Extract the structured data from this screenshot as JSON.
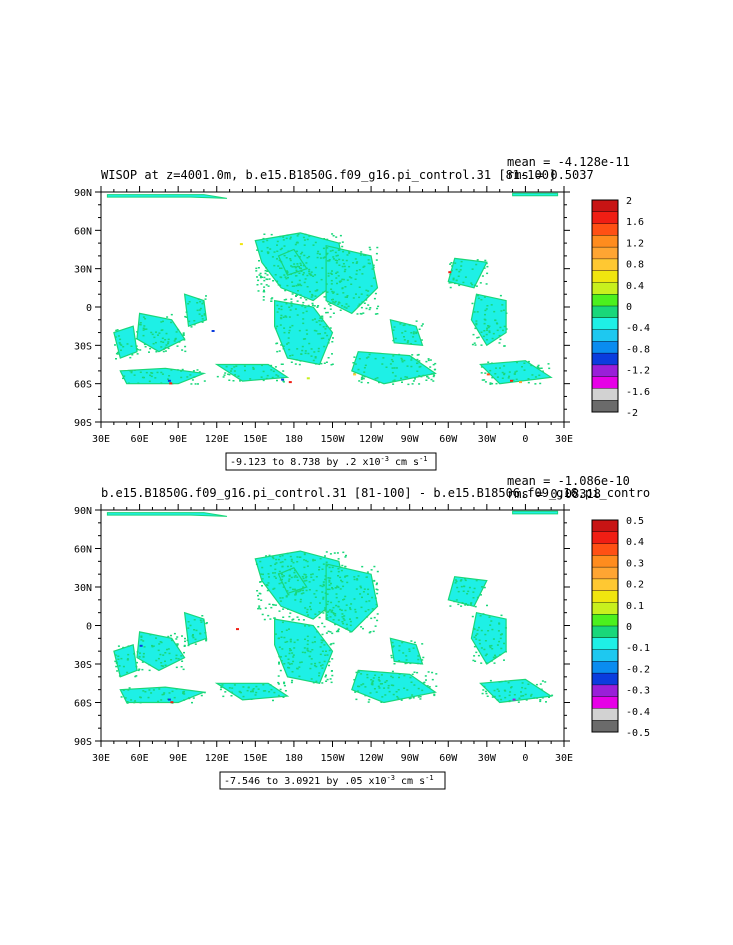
{
  "panels": [
    {
      "title": "WISOP at z=4001.0m, b.e15.B1850G.f09_g16.pi_control.31 [81-100]",
      "mean": "mean = -4.128e-11",
      "rms": "rms = 0.5037",
      "range_text": "-9.123 to 8.738 by .2 x10",
      "range_exp": "-3",
      "range_unit": " cm s",
      "range_unit_exp": "-1",
      "colorbar_labels": [
        "2",
        "1.6",
        "1.2",
        "0.8",
        "0.4",
        "0",
        "-0.4",
        "-0.8",
        "-1.2",
        "-1.6",
        "-2"
      ]
    },
    {
      "title": "b.e15.B1850G.f09_g16.pi_control.31 [81-100] - b.e15.B1850G.f09_g16.pi_contro",
      "mean": "mean = -1.086e-10",
      "rms": "rms = 0.08318",
      "range_text": "-7.546 to 3.0921 by .05 x10",
      "range_exp": "-3",
      "range_unit": " cm s",
      "range_unit_exp": "-1",
      "colorbar_labels": [
        "0.5",
        "0.4",
        "0.3",
        "0.2",
        "0.1",
        "0",
        "-0.1",
        "-0.2",
        "-0.3",
        "-0.4",
        "-0.5"
      ]
    }
  ],
  "chart_data": [
    {
      "type": "heatmap",
      "title": "WISOP at z=4001.0m, b.e15.B1850G.f09_g16.pi_control.31 [81-100]",
      "x_ticks": [
        "30E",
        "60E",
        "90E",
        "120E",
        "150E",
        "180",
        "150W",
        "120W",
        "90W",
        "60W",
        "30W",
        "0",
        "30E"
      ],
      "y_ticks": [
        "90N",
        "60N",
        "30N",
        "0",
        "30S",
        "60S",
        "90S"
      ],
      "xlim": [
        30,
        390
      ],
      "ylim": [
        -90,
        90
      ],
      "color_levels": [
        -2,
        -1.6,
        -1.2,
        -0.8,
        -0.4,
        0,
        0.4,
        0.8,
        1.2,
        1.6,
        2
      ],
      "colors": [
        "#6b6b6b",
        "#d2d2d2",
        "#e600e6",
        "#9a1fd8",
        "#0a3cde",
        "#0a8cf0",
        "#1ec8f0",
        "#1ef0e6",
        "#19d77a",
        "#4cf01e",
        "#c8f01e",
        "#f0e60f",
        "#ffc832",
        "#ffa532",
        "#ff8c1e",
        "#ff5014",
        "#f01e14",
        "#c81414"
      ],
      "mean": -4.128e-11,
      "rms": 0.5037,
      "data_min": -9.123,
      "data_max": 8.738,
      "contour_interval": 0.2,
      "units": "x10^-3 cm s^-1"
    },
    {
      "type": "heatmap",
      "title": "b.e15.B1850G.f09_g16.pi_control.31 [81-100] - b.e15.B1850G.f09_g16.pi_contro",
      "x_ticks": [
        "30E",
        "60E",
        "90E",
        "120E",
        "150E",
        "180",
        "150W",
        "120W",
        "90W",
        "60W",
        "30W",
        "0",
        "30E"
      ],
      "y_ticks": [
        "90N",
        "60N",
        "30N",
        "0",
        "30S",
        "60S",
        "90S"
      ],
      "xlim": [
        30,
        390
      ],
      "ylim": [
        -90,
        90
      ],
      "color_levels": [
        -0.5,
        -0.4,
        -0.3,
        -0.2,
        -0.1,
        0,
        0.1,
        0.2,
        0.3,
        0.4,
        0.5
      ],
      "colors": [
        "#6b6b6b",
        "#d2d2d2",
        "#e600e6",
        "#9a1fd8",
        "#0a3cde",
        "#0a8cf0",
        "#1ec8f0",
        "#1ef0e6",
        "#19d77a",
        "#4cf01e",
        "#c8f01e",
        "#f0e60f",
        "#ffc832",
        "#ffa532",
        "#ff8c1e",
        "#ff5014",
        "#f01e14",
        "#c81414"
      ],
      "mean": -1.086e-10,
      "rms": 0.08318,
      "data_min": -7.546,
      "data_max": 3.0921,
      "contour_interval": 0.05,
      "units": "x10^-3 cm s^-1"
    }
  ]
}
